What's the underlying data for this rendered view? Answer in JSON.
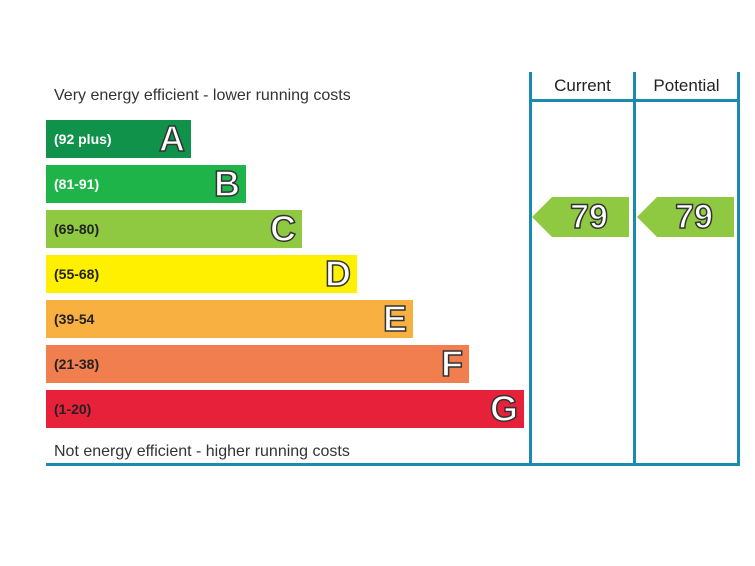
{
  "top_label": "Very energy efficient - lower running costs",
  "bottom_label": "Not energy efficient - higher running costs",
  "columns": {
    "current": "Current",
    "potential": "Potential"
  },
  "bands": [
    {
      "letter": "A",
      "range": "(92 plus)",
      "color": "#10924a",
      "text_color": "#ffffff"
    },
    {
      "letter": "B",
      "range": "(81-91)",
      "color": "#1eb44a",
      "text_color": "#ffffff"
    },
    {
      "letter": "C",
      "range": "(69-80)",
      "color": "#8fc941",
      "text_color": "#222222"
    },
    {
      "letter": "D",
      "range": "(55-68)",
      "color": "#fff000",
      "text_color": "#222222"
    },
    {
      "letter": "E",
      "range": "(39-54",
      "color": "#f8b040",
      "text_color": "#222222"
    },
    {
      "letter": "F",
      "range": "(21-38)",
      "color": "#f07e4f",
      "text_color": "#222222"
    },
    {
      "letter": "G",
      "range": "(1-20)",
      "color": "#e8213a",
      "text_color": "#222222"
    }
  ],
  "current": {
    "value": "79",
    "band": "C",
    "color": "#8fc941"
  },
  "potential": {
    "value": "79",
    "band": "C",
    "color": "#8fc941"
  },
  "line_color": "#1a8bb0"
}
